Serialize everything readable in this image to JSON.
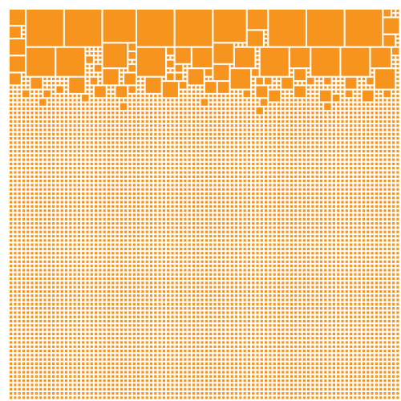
{
  "artwork": {
    "style": "square-packing grid",
    "fill_color": "#F7941E",
    "background_color": "#FFFFFF",
    "caption": ""
  }
}
